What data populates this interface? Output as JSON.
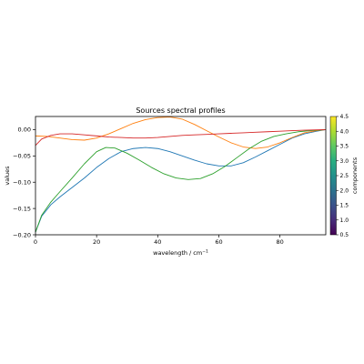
{
  "chart_data": {
    "type": "line",
    "title": "Sources spectral profiles",
    "xlabel": "wavelength / cm",
    "xlabel_sup": "−1",
    "ylabel": "values",
    "xlim": [
      0,
      95
    ],
    "ylim": [
      -0.2,
      0.025
    ],
    "x_ticks": [
      0,
      20,
      40,
      60,
      80
    ],
    "x_tick_labels": [
      "0",
      "20",
      "40",
      "60",
      "80"
    ],
    "y_ticks": [
      0.0,
      -0.05,
      -0.1,
      -0.15,
      -0.2
    ],
    "y_tick_labels": [
      "0.00",
      "−0.05",
      "−0.10",
      "−0.15",
      "−0.20"
    ],
    "grid": false,
    "legend": "none",
    "colorbar": {
      "label": "components",
      "min": 0.5,
      "max": 4.5,
      "ticks": [
        0.5,
        1.0,
        1.5,
        2.0,
        2.5,
        3.0,
        3.5,
        4.0,
        4.5
      ],
      "tick_labels": [
        "0.5",
        "1.0",
        "1.5",
        "2.0",
        "2.5",
        "3.0",
        "3.5",
        "4.0",
        "4.5"
      ],
      "colormap": "viridis"
    },
    "series": [
      {
        "color": "#1f77b4",
        "x": [
          0,
          2,
          5,
          8,
          12,
          16,
          20,
          24,
          28,
          32,
          36,
          40,
          44,
          48,
          52,
          56,
          60,
          64,
          68,
          72,
          76,
          80,
          84,
          88,
          92,
          95
        ],
        "y": [
          -0.195,
          -0.165,
          -0.143,
          -0.128,
          -0.11,
          -0.092,
          -0.072,
          -0.055,
          -0.042,
          -0.036,
          -0.034,
          -0.036,
          -0.042,
          -0.05,
          -0.058,
          -0.065,
          -0.069,
          -0.069,
          -0.063,
          -0.052,
          -0.04,
          -0.028,
          -0.016,
          -0.008,
          -0.003,
          0.0
        ]
      },
      {
        "color": "#ff7f0e",
        "x": [
          0,
          4,
          8,
          12,
          16,
          20,
          24,
          28,
          32,
          36,
          40,
          44,
          48,
          52,
          56,
          60,
          64,
          68,
          72,
          76,
          80,
          84,
          88,
          92,
          95
        ],
        "y": [
          -0.012,
          -0.013,
          -0.016,
          -0.019,
          -0.02,
          -0.016,
          -0.008,
          0.002,
          0.012,
          0.019,
          0.023,
          0.024,
          0.02,
          0.01,
          -0.002,
          -0.014,
          -0.025,
          -0.033,
          -0.036,
          -0.033,
          -0.025,
          -0.015,
          -0.006,
          -0.002,
          0.0
        ]
      },
      {
        "color": "#2ca02c",
        "x": [
          0,
          2,
          5,
          8,
          12,
          16,
          20,
          23,
          26,
          30,
          34,
          38,
          42,
          46,
          50,
          54,
          58,
          62,
          66,
          70,
          74,
          78,
          82,
          86,
          90,
          95
        ],
        "y": [
          -0.195,
          -0.163,
          -0.138,
          -0.118,
          -0.092,
          -0.065,
          -0.042,
          -0.034,
          -0.035,
          -0.045,
          -0.058,
          -0.072,
          -0.084,
          -0.092,
          -0.095,
          -0.093,
          -0.084,
          -0.07,
          -0.053,
          -0.036,
          -0.022,
          -0.013,
          -0.008,
          -0.004,
          -0.002,
          0.0
        ]
      },
      {
        "color": "#d62728",
        "x": [
          0,
          2,
          5,
          8,
          12,
          16,
          20,
          24,
          28,
          32,
          36,
          40,
          44,
          48,
          52,
          56,
          60,
          64,
          68,
          72,
          76,
          80,
          84,
          88,
          92,
          95
        ],
        "y": [
          -0.03,
          -0.018,
          -0.011,
          -0.008,
          -0.008,
          -0.01,
          -0.012,
          -0.014,
          -0.015,
          -0.016,
          -0.016,
          -0.015,
          -0.013,
          -0.011,
          -0.01,
          -0.009,
          -0.008,
          -0.007,
          -0.006,
          -0.005,
          -0.004,
          -0.003,
          -0.002,
          -0.001,
          -0.0005,
          0.0
        ]
      }
    ]
  }
}
